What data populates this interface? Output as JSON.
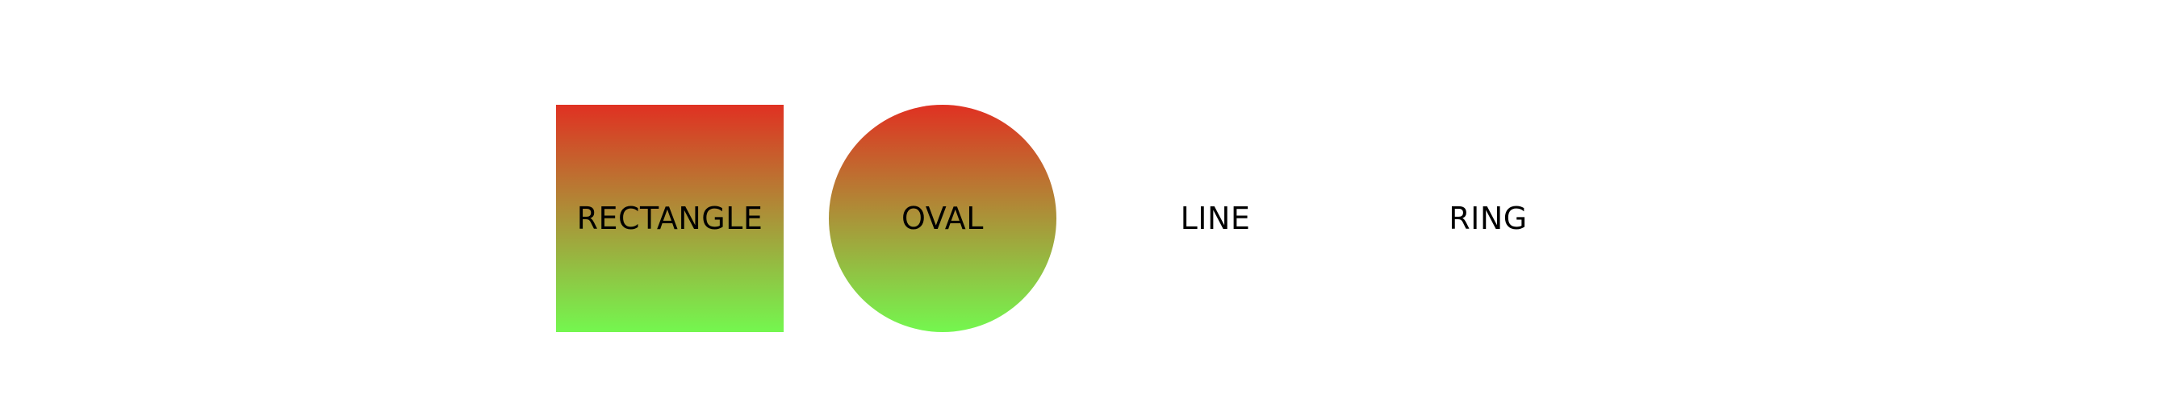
{
  "colors": {
    "gradient_top": "#e03122",
    "gradient_bottom": "#74f74f",
    "label": "#000000",
    "background": "#ffffff"
  },
  "shapes": [
    {
      "label": "RECTANGLE",
      "fill": "gradient"
    },
    {
      "label": "OVAL",
      "fill": "gradient"
    },
    {
      "label": "LINE",
      "fill": "none"
    },
    {
      "label": "RING",
      "fill": "none"
    }
  ]
}
